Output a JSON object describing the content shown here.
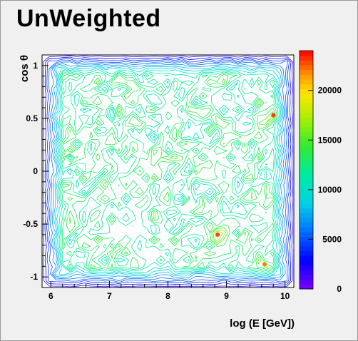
{
  "chart_data": {
    "type": "contour",
    "title": "UnWeighted",
    "xlabel": "log (E [GeV])",
    "ylabel": "cos θ",
    "xlim": [
      5.85,
      10.15
    ],
    "ylim": [
      -1.1,
      1.1
    ],
    "x_ticks": [
      "6",
      "7",
      "8",
      "9",
      "10"
    ],
    "y_ticks": [
      "-1",
      "-0.5",
      "0",
      "0.5",
      "1"
    ],
    "colorbar": {
      "range": [
        0,
        24000
      ],
      "ticks": [
        "0",
        "5000",
        "10000",
        "15000",
        "20000"
      ]
    },
    "z_typical_range": [
      8000,
      17000
    ],
    "hotspots": [
      {
        "x": 9.8,
        "y": 0.53,
        "z": 23000
      },
      {
        "x": 8.85,
        "y": -0.6,
        "z": 23000
      },
      {
        "x": 9.65,
        "y": -0.88,
        "z": 22000
      }
    ]
  }
}
